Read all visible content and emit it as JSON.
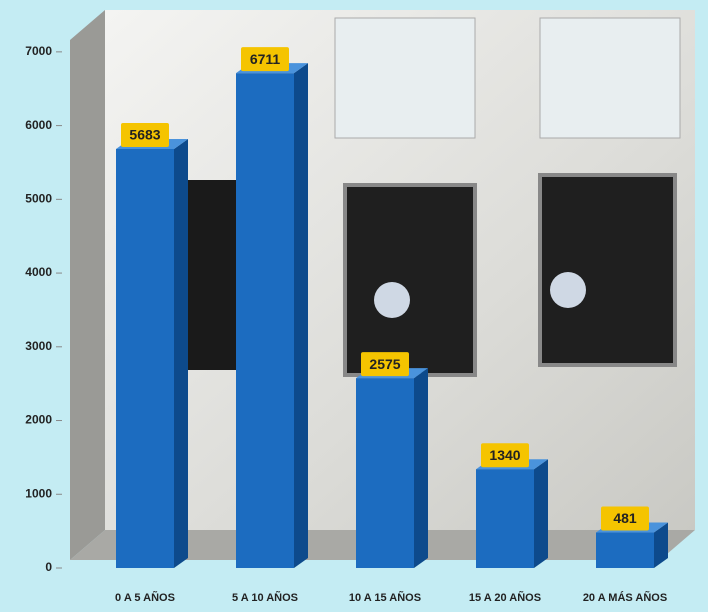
{
  "chart_data": {
    "type": "bar",
    "categories": [
      "0 A 5 AÑOS",
      "5 A 10 AÑOS",
      "10 A 15 AÑOS",
      "15 A 20 AÑOS",
      "20 A MÁS AÑOS"
    ],
    "values": [
      5683,
      6711,
      2575,
      1340,
      481
    ],
    "color": "#1c6cc0",
    "ylim": [
      0,
      7500
    ],
    "yticks": [
      0,
      1000,
      2000,
      3000,
      4000,
      5000,
      6000,
      7000
    ]
  }
}
